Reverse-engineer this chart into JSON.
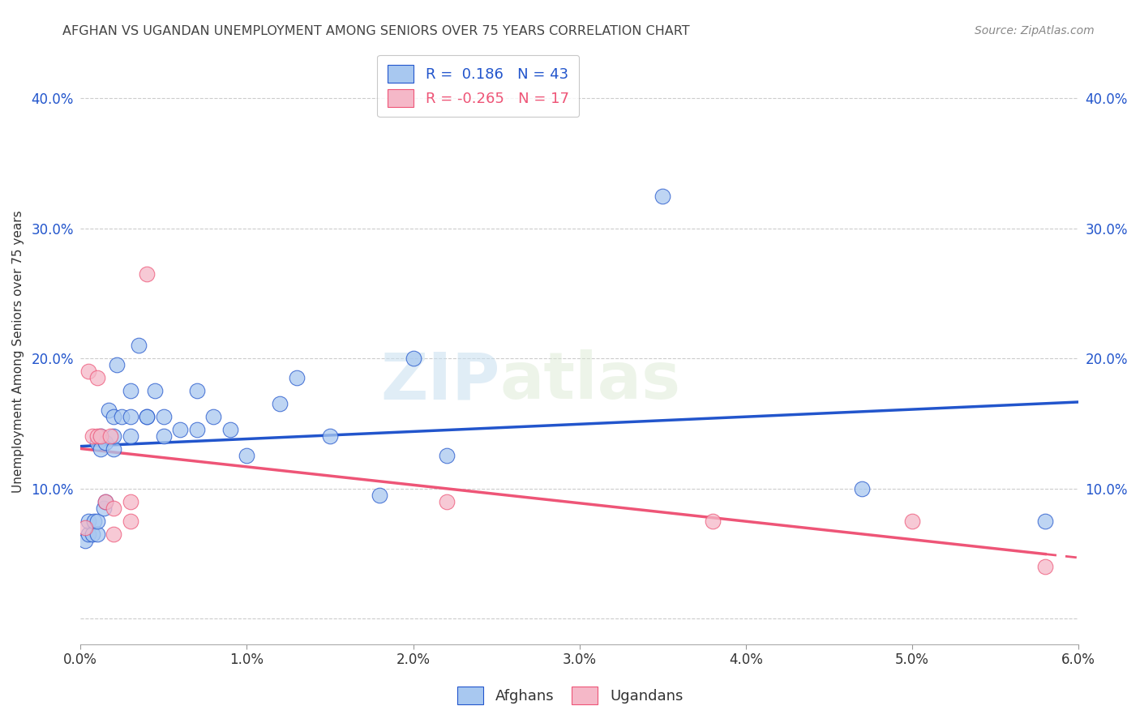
{
  "title": "AFGHAN VS UGANDAN UNEMPLOYMENT AMONG SENIORS OVER 75 YEARS CORRELATION CHART",
  "source": "Source: ZipAtlas.com",
  "ylabel": "Unemployment Among Seniors over 75 years",
  "y_ticks": [
    0.0,
    0.1,
    0.2,
    0.3,
    0.4
  ],
  "y_tick_labels": [
    "",
    "10.0%",
    "20.0%",
    "30.0%",
    "40.0%"
  ],
  "x_lim": [
    0.0,
    0.06
  ],
  "y_lim": [
    -0.02,
    0.43
  ],
  "afghan_R": 0.186,
  "afghan_N": 43,
  "ugandan_R": -0.265,
  "ugandan_N": 17,
  "afghan_color": "#A8C8F0",
  "ugandan_color": "#F5B8C8",
  "afghan_line_color": "#2255CC",
  "ugandan_line_color": "#EE5577",
  "watermark_zip": "ZIP",
  "watermark_atlas": "atlas",
  "afghan_scatter_x": [
    0.0003,
    0.0005,
    0.0005,
    0.0007,
    0.0008,
    0.001,
    0.001,
    0.001,
    0.0012,
    0.0012,
    0.0014,
    0.0015,
    0.0015,
    0.0017,
    0.002,
    0.002,
    0.002,
    0.0022,
    0.0025,
    0.003,
    0.003,
    0.003,
    0.0035,
    0.004,
    0.004,
    0.0045,
    0.005,
    0.005,
    0.006,
    0.007,
    0.007,
    0.008,
    0.009,
    0.01,
    0.012,
    0.013,
    0.015,
    0.018,
    0.02,
    0.022,
    0.035,
    0.047,
    0.058
  ],
  "afghan_scatter_y": [
    0.06,
    0.065,
    0.075,
    0.065,
    0.075,
    0.065,
    0.075,
    0.135,
    0.13,
    0.14,
    0.085,
    0.09,
    0.135,
    0.16,
    0.13,
    0.14,
    0.155,
    0.195,
    0.155,
    0.14,
    0.155,
    0.175,
    0.21,
    0.155,
    0.155,
    0.175,
    0.155,
    0.14,
    0.145,
    0.145,
    0.175,
    0.155,
    0.145,
    0.125,
    0.165,
    0.185,
    0.14,
    0.095,
    0.2,
    0.125,
    0.325,
    0.1,
    0.075
  ],
  "ugandan_scatter_x": [
    0.0003,
    0.0005,
    0.0007,
    0.001,
    0.001,
    0.0012,
    0.0015,
    0.0018,
    0.002,
    0.002,
    0.003,
    0.003,
    0.004,
    0.022,
    0.038,
    0.05,
    0.058
  ],
  "ugandan_scatter_y": [
    0.07,
    0.19,
    0.14,
    0.14,
    0.185,
    0.14,
    0.09,
    0.14,
    0.085,
    0.065,
    0.075,
    0.09,
    0.265,
    0.09,
    0.075,
    0.075,
    0.04
  ]
}
